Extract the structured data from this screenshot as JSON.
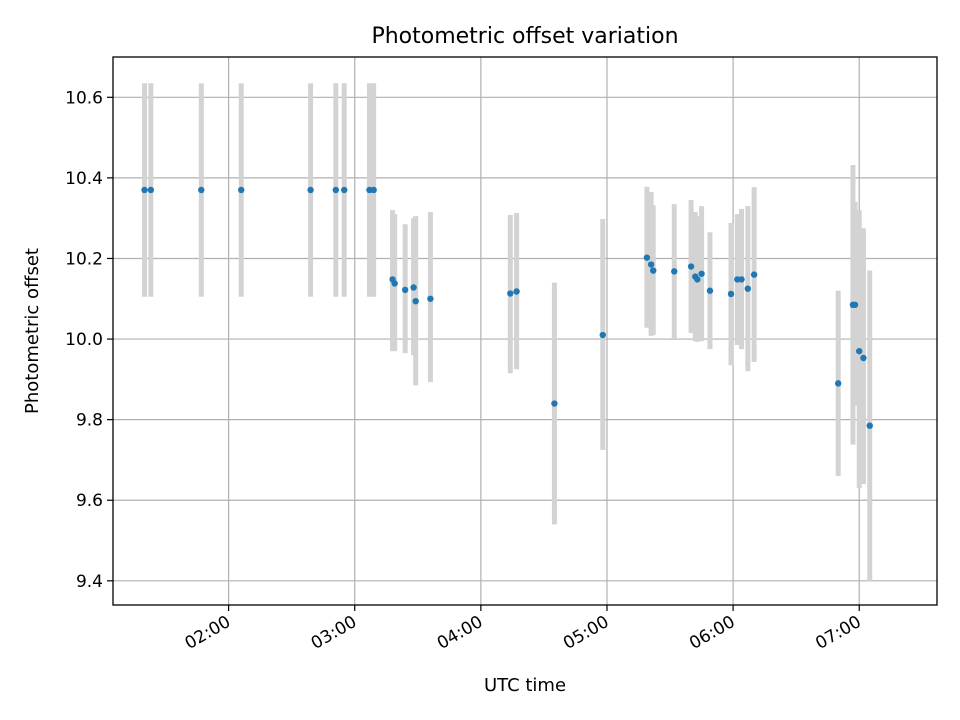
{
  "chart_data": {
    "type": "scatter",
    "title": "Photometric offset variation",
    "xlabel": "UTC time",
    "ylabel": "Photometric offset",
    "x_unit": "UTC hours",
    "xlim": [
      "01:05",
      "07:37"
    ],
    "ylim": [
      9.34,
      10.7
    ],
    "x_ticks": [
      "02:00",
      "03:00",
      "04:00",
      "05:00",
      "06:00",
      "07:00"
    ],
    "y_ticks": [
      9.4,
      9.6,
      9.8,
      10.0,
      10.2,
      10.4,
      10.6
    ],
    "y_tick_labels": [
      "9.4",
      "9.6",
      "9.8",
      "10.0",
      "10.2",
      "10.4",
      "10.6"
    ],
    "grid": true,
    "colors": {
      "point": "#1f77b4",
      "errorbar": "#d3d3d3",
      "grid": "#b0b0b0"
    },
    "series": [
      {
        "points": [
          {
            "x": "01:20",
            "y": 10.37,
            "ylow": 10.105,
            "yhigh": 10.635
          },
          {
            "x": "01:23",
            "y": 10.37,
            "ylow": 10.105,
            "yhigh": 10.635
          },
          {
            "x": "01:47",
            "y": 10.37,
            "ylow": 10.105,
            "yhigh": 10.635
          },
          {
            "x": "02:06",
            "y": 10.37,
            "ylow": 10.105,
            "yhigh": 10.635
          },
          {
            "x": "02:39",
            "y": 10.37,
            "ylow": 10.105,
            "yhigh": 10.635
          },
          {
            "x": "02:51",
            "y": 10.37,
            "ylow": 10.105,
            "yhigh": 10.635
          },
          {
            "x": "02:55",
            "y": 10.37,
            "ylow": 10.105,
            "yhigh": 10.635
          },
          {
            "x": "03:07",
            "y": 10.37,
            "ylow": 10.105,
            "yhigh": 10.635
          },
          {
            "x": "03:09",
            "y": 10.37,
            "ylow": 10.105,
            "yhigh": 10.635
          },
          {
            "x": "03:18",
            "y": 10.148,
            "ylow": 9.97,
            "yhigh": 10.32
          },
          {
            "x": "03:19",
            "y": 10.138,
            "ylow": 9.97,
            "yhigh": 10.31
          },
          {
            "x": "03:24",
            "y": 10.122,
            "ylow": 9.965,
            "yhigh": 10.285
          },
          {
            "x": "03:28",
            "y": 10.128,
            "ylow": 9.96,
            "yhigh": 10.3
          },
          {
            "x": "03:29",
            "y": 10.094,
            "ylow": 9.885,
            "yhigh": 10.305
          },
          {
            "x": "03:36",
            "y": 10.1,
            "ylow": 9.893,
            "yhigh": 10.315
          },
          {
            "x": "04:14",
            "y": 10.113,
            "ylow": 9.915,
            "yhigh": 10.308
          },
          {
            "x": "04:17",
            "y": 10.118,
            "ylow": 9.925,
            "yhigh": 10.313
          },
          {
            "x": "04:35",
            "y": 9.84,
            "ylow": 9.54,
            "yhigh": 10.14
          },
          {
            "x": "04:58",
            "y": 10.01,
            "ylow": 9.725,
            "yhigh": 10.298
          },
          {
            "x": "05:19",
            "y": 10.202,
            "ylow": 10.028,
            "yhigh": 10.378
          },
          {
            "x": "05:21",
            "y": 10.185,
            "ylow": 10.008,
            "yhigh": 10.365
          },
          {
            "x": "05:22",
            "y": 10.17,
            "ylow": 10.01,
            "yhigh": 10.332
          },
          {
            "x": "05:32",
            "y": 10.168,
            "ylow": 10.0,
            "yhigh": 10.335
          },
          {
            "x": "05:40",
            "y": 10.18,
            "ylow": 10.015,
            "yhigh": 10.345
          },
          {
            "x": "05:42",
            "y": 10.155,
            "ylow": 9.995,
            "yhigh": 10.315
          },
          {
            "x": "05:43",
            "y": 10.148,
            "ylow": 9.993,
            "yhigh": 10.305
          },
          {
            "x": "05:45",
            "y": 10.162,
            "ylow": 9.995,
            "yhigh": 10.33
          },
          {
            "x": "05:49",
            "y": 10.12,
            "ylow": 9.975,
            "yhigh": 10.265
          },
          {
            "x": "05:59",
            "y": 10.112,
            "ylow": 9.935,
            "yhigh": 10.288
          },
          {
            "x": "06:02",
            "y": 10.148,
            "ylow": 9.985,
            "yhigh": 10.31
          },
          {
            "x": "06:04",
            "y": 10.148,
            "ylow": 9.975,
            "yhigh": 10.323
          },
          {
            "x": "06:07",
            "y": 10.125,
            "ylow": 9.92,
            "yhigh": 10.33
          },
          {
            "x": "06:10",
            "y": 10.16,
            "ylow": 9.943,
            "yhigh": 10.377
          },
          {
            "x": "06:50",
            "y": 9.89,
            "ylow": 9.66,
            "yhigh": 10.12
          },
          {
            "x": "06:57",
            "y": 10.085,
            "ylow": 9.738,
            "yhigh": 10.432
          },
          {
            "x": "06:58",
            "y": 10.085,
            "ylow": 9.835,
            "yhigh": 10.34
          },
          {
            "x": "07:00",
            "y": 9.97,
            "ylow": 9.63,
            "yhigh": 10.32
          },
          {
            "x": "07:02",
            "y": 9.953,
            "ylow": 9.64,
            "yhigh": 10.275
          },
          {
            "x": "07:05",
            "y": 9.785,
            "ylow": 9.4,
            "yhigh": 10.17
          }
        ]
      }
    ]
  }
}
